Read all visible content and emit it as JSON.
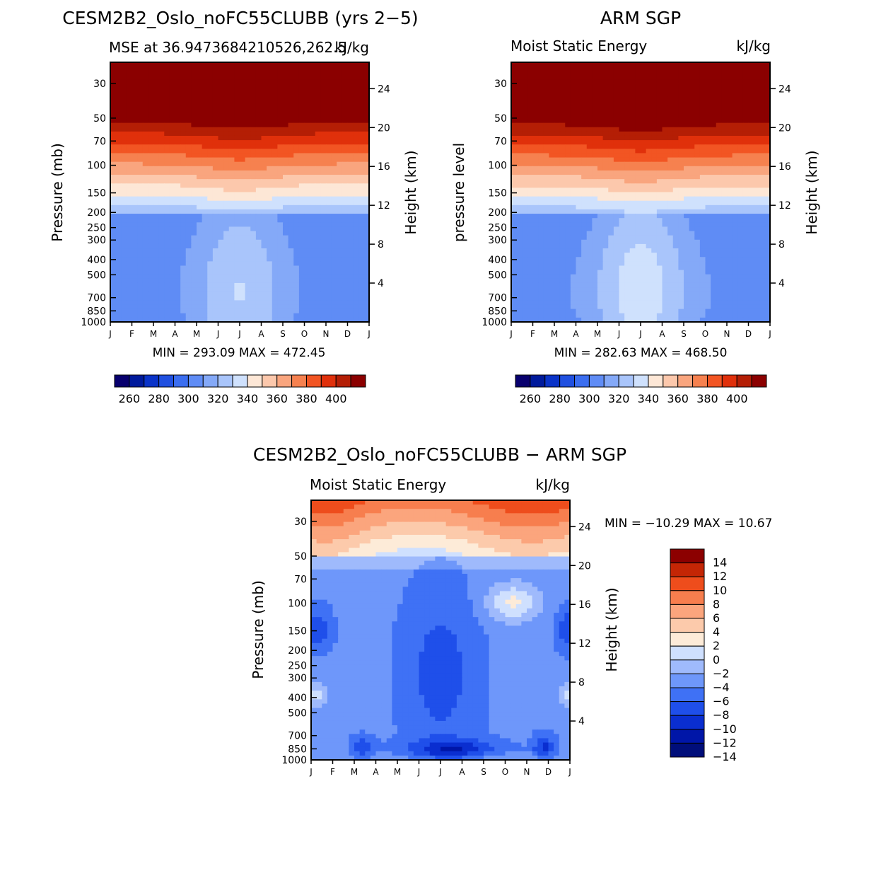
{
  "chart_data": [
    {
      "type": "heatmap",
      "id": "model",
      "title": "CESM2B2_Oslo_noFC55CLUBB (yrs 2-5)",
      "subtitle_left": "MSE at 36.9473684210526,262.5",
      "subtitle_right": "kJ/kg",
      "ylabel": "Pressure (mb)",
      "ylabel_right": "Height (km)",
      "stats": "MIN = 293.09 MAX = 472.45",
      "x": [
        "J",
        "F",
        "M",
        "A",
        "M",
        "J",
        "J",
        "A",
        "S",
        "O",
        "N",
        "D",
        "J"
      ],
      "y_ticks": [
        30,
        50,
        70,
        100,
        150,
        200,
        250,
        300,
        400,
        500,
        700,
        850,
        1000
      ],
      "height_ticks": [
        4,
        8,
        12,
        16,
        20,
        24
      ],
      "ylim": [
        1000,
        22
      ],
      "color_levels": [
        255,
        260,
        265,
        270,
        275,
        280,
        285,
        290,
        295,
        300,
        305,
        310,
        315,
        320,
        325,
        330,
        335,
        340,
        345,
        350,
        355,
        360,
        365,
        370,
        375,
        380,
        385,
        390,
        395,
        400,
        405
      ],
      "colorbar_labels": [
        "260",
        "280",
        "300",
        "320",
        "340",
        "360",
        "380",
        "400"
      ]
    },
    {
      "type": "heatmap",
      "id": "obs",
      "title": "ARM SGP",
      "subtitle_left": "Moist Static Energy",
      "subtitle_right": "kJ/kg",
      "ylabel": "pressure level",
      "ylabel_right": "Height (km)",
      "stats": "MIN = 282.63 MAX = 468.50",
      "x": [
        "J",
        "F",
        "M",
        "A",
        "M",
        "J",
        "J",
        "A",
        "S",
        "O",
        "N",
        "D",
        "J"
      ],
      "y_ticks": [
        30,
        50,
        70,
        100,
        150,
        200,
        250,
        300,
        400,
        500,
        700,
        850,
        1000
      ],
      "height_ticks": [
        4,
        8,
        12,
        16,
        20,
        24
      ],
      "ylim": [
        1000,
        22
      ],
      "colorbar_labels": [
        "260",
        "280",
        "300",
        "320",
        "340",
        "360",
        "380",
        "400"
      ]
    },
    {
      "type": "heatmap",
      "id": "diff",
      "title": "CESM2B2_Oslo_noFC55CLUBB - ARM SGP",
      "subtitle_left": "Moist Static Energy",
      "subtitle_right": "kJ/kg",
      "ylabel": "Pressure (mb)",
      "ylabel_right": "Height (km)",
      "stats": "MIN = -10.29 MAX =  10.67",
      "x": [
        "J",
        "F",
        "M",
        "A",
        "M",
        "J",
        "J",
        "A",
        "S",
        "O",
        "N",
        "D",
        "J"
      ],
      "y_ticks": [
        30,
        50,
        70,
        100,
        150,
        200,
        250,
        300,
        400,
        500,
        700,
        850,
        1000
      ],
      "height_ticks": [
        4,
        8,
        12,
        16,
        20,
        24
      ],
      "ylim": [
        1000,
        22
      ],
      "colorbar_labels": [
        "14",
        "12",
        "10",
        "8",
        "6",
        "4",
        "2",
        "0",
        "-2",
        "-4",
        "-6",
        "-8",
        "-10",
        "-12",
        "-14"
      ]
    }
  ],
  "palettes": {
    "abs": [
      "#08006e",
      "#001a9c",
      "#0a33c8",
      "#2050e0",
      "#3b6ef0",
      "#5f8cf5",
      "#84a9f8",
      "#a9c5fb",
      "#cfe1fd",
      "#fde7d6",
      "#fcc8ac",
      "#f9a57e",
      "#f6814f",
      "#f25523",
      "#e0300b",
      "#b41e05",
      "#8b0000"
    ],
    "diff": [
      "#000e7a",
      "#0016a8",
      "#0a2ed0",
      "#1f4fea",
      "#3f71f5",
      "#6e97fa",
      "#9fbafc",
      "#cfe0fe",
      "#fdebd8",
      "#fccaab",
      "#fba57d",
      "#f77e4e",
      "#ee4d1c",
      "#c42605",
      "#8c0000"
    ]
  }
}
